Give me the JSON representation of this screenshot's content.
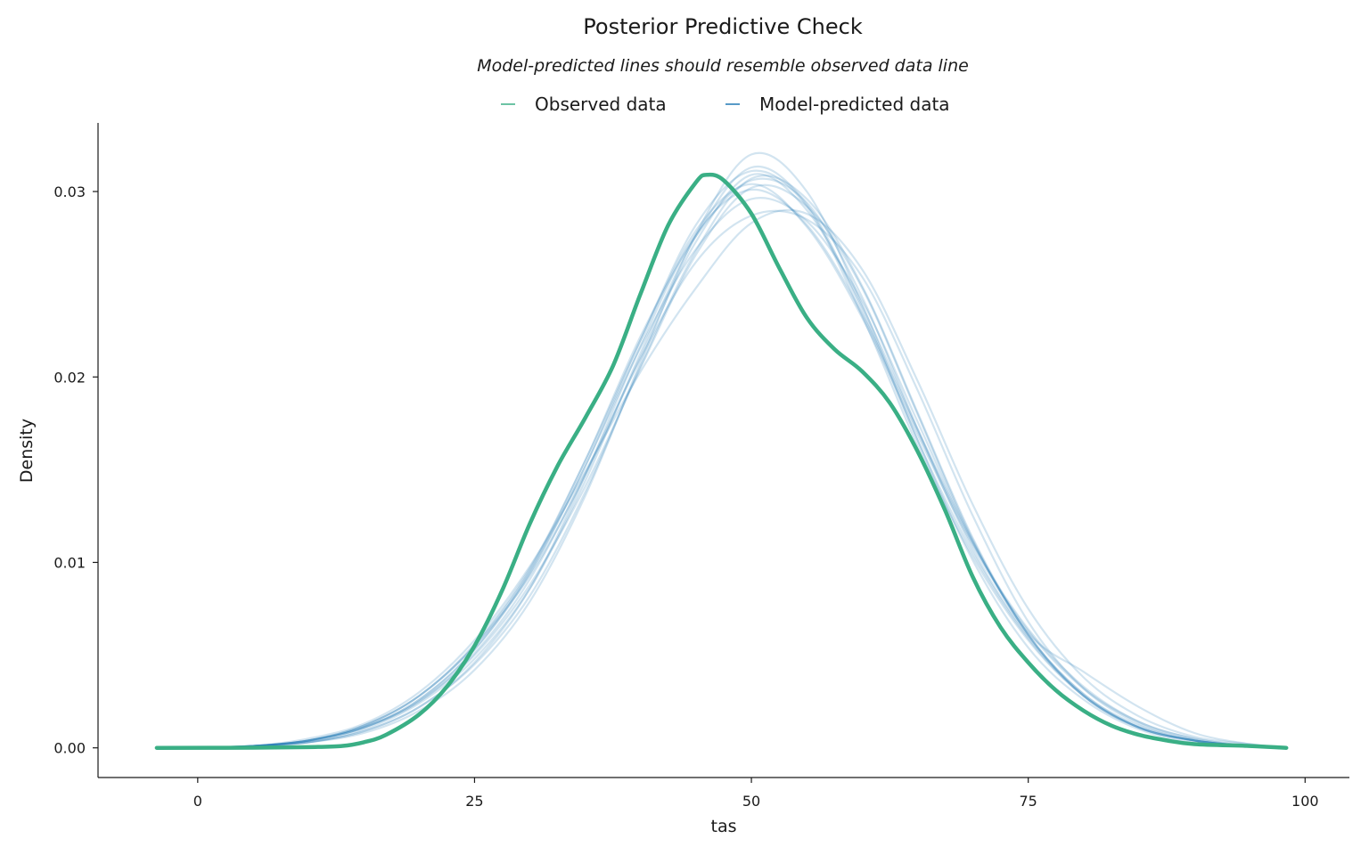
{
  "chart_data": {
    "type": "line",
    "title": "Posterior Predictive Check",
    "subtitle": "Model-predicted lines should resemble observed data line",
    "xlabel": "tas",
    "ylabel": "Density",
    "xlim": [
      -9,
      104
    ],
    "ylim": [
      -0.0016,
      0.0337
    ],
    "x_ticks": [
      0,
      25,
      50,
      75,
      100
    ],
    "x_tick_labels": [
      "0",
      "25",
      "50",
      "75",
      "100"
    ],
    "y_ticks": [
      0,
      0.01,
      0.02,
      0.03
    ],
    "y_tick_labels": [
      "0.00",
      "0.01",
      "0.02",
      "0.03"
    ],
    "grid": false,
    "legend_position": "top-center",
    "legend": [
      {
        "label": "Observed data",
        "color": "#3aaf85"
      },
      {
        "label": "Model-predicted data",
        "color": "#1f78b4"
      }
    ],
    "observed": {
      "name": "Observed data",
      "color": "#3aaf85",
      "x": [
        -3.7,
        5,
        10,
        13,
        15,
        17,
        20,
        22.5,
        25,
        27.5,
        30,
        32.5,
        35,
        37.5,
        40,
        42.5,
        45,
        46,
        47.5,
        50,
        52.5,
        55,
        57.5,
        60,
        62.5,
        65,
        67.5,
        70,
        72.5,
        75,
        77.5,
        80,
        82.5,
        85,
        87.5,
        90,
        95,
        98.3
      ],
      "y": [
        0,
        1e-05,
        4e-05,
        0.0001,
        0.0003,
        0.0007,
        0.0018,
        0.0033,
        0.0055,
        0.0085,
        0.0121,
        0.0152,
        0.0178,
        0.0206,
        0.0245,
        0.0282,
        0.0305,
        0.0309,
        0.0306,
        0.0288,
        0.0259,
        0.0232,
        0.0215,
        0.0203,
        0.0186,
        0.016,
        0.0128,
        0.0092,
        0.0065,
        0.0046,
        0.0031,
        0.002,
        0.0012,
        0.0007,
        0.0004,
        0.0002,
        0.0001,
        0
      ]
    },
    "predicted": {
      "name": "Model-predicted data",
      "color": "#1f78b4",
      "opacity": 0.2,
      "x": [
        0,
        5,
        10,
        15,
        20,
        25,
        30,
        35,
        40,
        45,
        50,
        55,
        60,
        65,
        70,
        75,
        80,
        85,
        90,
        95,
        98.3
      ],
      "draws": [
        [
          0,
          0.0001,
          0.0004,
          0.0011,
          0.0026,
          0.0053,
          0.0095,
          0.0152,
          0.022,
          0.0282,
          0.0311,
          0.0292,
          0.0233,
          0.0163,
          0.0103,
          0.0058,
          0.0028,
          0.0011,
          0.0004,
          0.0001,
          0
        ],
        [
          0,
          0.0001,
          0.0005,
          0.0013,
          0.003,
          0.0058,
          0.0098,
          0.0149,
          0.0203,
          0.0248,
          0.0283,
          0.0288,
          0.0258,
          0.0198,
          0.0131,
          0.0075,
          0.0038,
          0.0017,
          0.0006,
          0.0002,
          0
        ],
        [
          0,
          0.0001,
          0.0003,
          0.0009,
          0.0022,
          0.0046,
          0.0086,
          0.0147,
          0.0217,
          0.0277,
          0.0301,
          0.0282,
          0.0234,
          0.0171,
          0.011,
          0.0064,
          0.0033,
          0.0014,
          0.0005,
          0.0001,
          0
        ],
        [
          0,
          0.0001,
          0.0004,
          0.0012,
          0.0028,
          0.0055,
          0.0096,
          0.0155,
          0.0222,
          0.0276,
          0.0306,
          0.0294,
          0.0243,
          0.0172,
          0.0107,
          0.006,
          0.0029,
          0.0011,
          0.0004,
          0.0001,
          0
        ],
        [
          0,
          0.0001,
          0.0003,
          0.0008,
          0.002,
          0.0042,
          0.0079,
          0.0136,
          0.0208,
          0.0277,
          0.032,
          0.03,
          0.0239,
          0.0166,
          0.0101,
          0.0054,
          0.0026,
          0.001,
          0.0003,
          0.0001,
          0
        ],
        [
          0,
          0.0001,
          0.0004,
          0.0011,
          0.0025,
          0.0051,
          0.0091,
          0.0148,
          0.021,
          0.0262,
          0.0287,
          0.0285,
          0.0254,
          0.0193,
          0.0125,
          0.0068,
          0.0032,
          0.0013,
          0.0004,
          0.0001,
          0
        ],
        [
          0,
          0.0001,
          0.0004,
          0.0012,
          0.0028,
          0.0055,
          0.0093,
          0.0147,
          0.0211,
          0.0273,
          0.0309,
          0.029,
          0.0238,
          0.0172,
          0.0111,
          0.0061,
          0.0028,
          0.0011,
          0.0004,
          0.0001,
          0
        ],
        [
          0,
          0.0001,
          0.0003,
          0.001,
          0.0024,
          0.0048,
          0.0086,
          0.0144,
          0.0213,
          0.0276,
          0.0313,
          0.0293,
          0.0236,
          0.0166,
          0.0105,
          0.0059,
          0.0028,
          0.0011,
          0.0004,
          0.0001,
          0
        ],
        [
          0,
          0.0001,
          0.0004,
          0.0011,
          0.0026,
          0.0053,
          0.0094,
          0.0152,
          0.0216,
          0.0269,
          0.0296,
          0.0284,
          0.0241,
          0.0176,
          0.0111,
          0.0061,
          0.0029,
          0.0012,
          0.0004,
          0.0001,
          0
        ],
        [
          0,
          0.0001,
          0.0004,
          0.0012,
          0.0028,
          0.0056,
          0.0097,
          0.0155,
          0.022,
          0.0279,
          0.0304,
          0.0281,
          0.0232,
          0.0169,
          0.0109,
          0.0063,
          0.0032,
          0.0014,
          0.0005,
          0.0001,
          0
        ],
        [
          0,
          0.0001,
          0.0003,
          0.0009,
          0.0022,
          0.0045,
          0.0082,
          0.0138,
          0.0206,
          0.0268,
          0.0307,
          0.0296,
          0.0249,
          0.0181,
          0.0113,
          0.0061,
          0.0028,
          0.0011,
          0.0004,
          0.0001,
          0
        ],
        [
          0,
          0.0001,
          0.0004,
          0.0011,
          0.0025,
          0.005,
          0.0088,
          0.0141,
          0.0205,
          0.0266,
          0.0302,
          0.0292,
          0.0248,
          0.018,
          0.0112,
          0.0062,
          0.0041,
          0.0022,
          0.0008,
          0.0002,
          0
        ]
      ]
    }
  }
}
